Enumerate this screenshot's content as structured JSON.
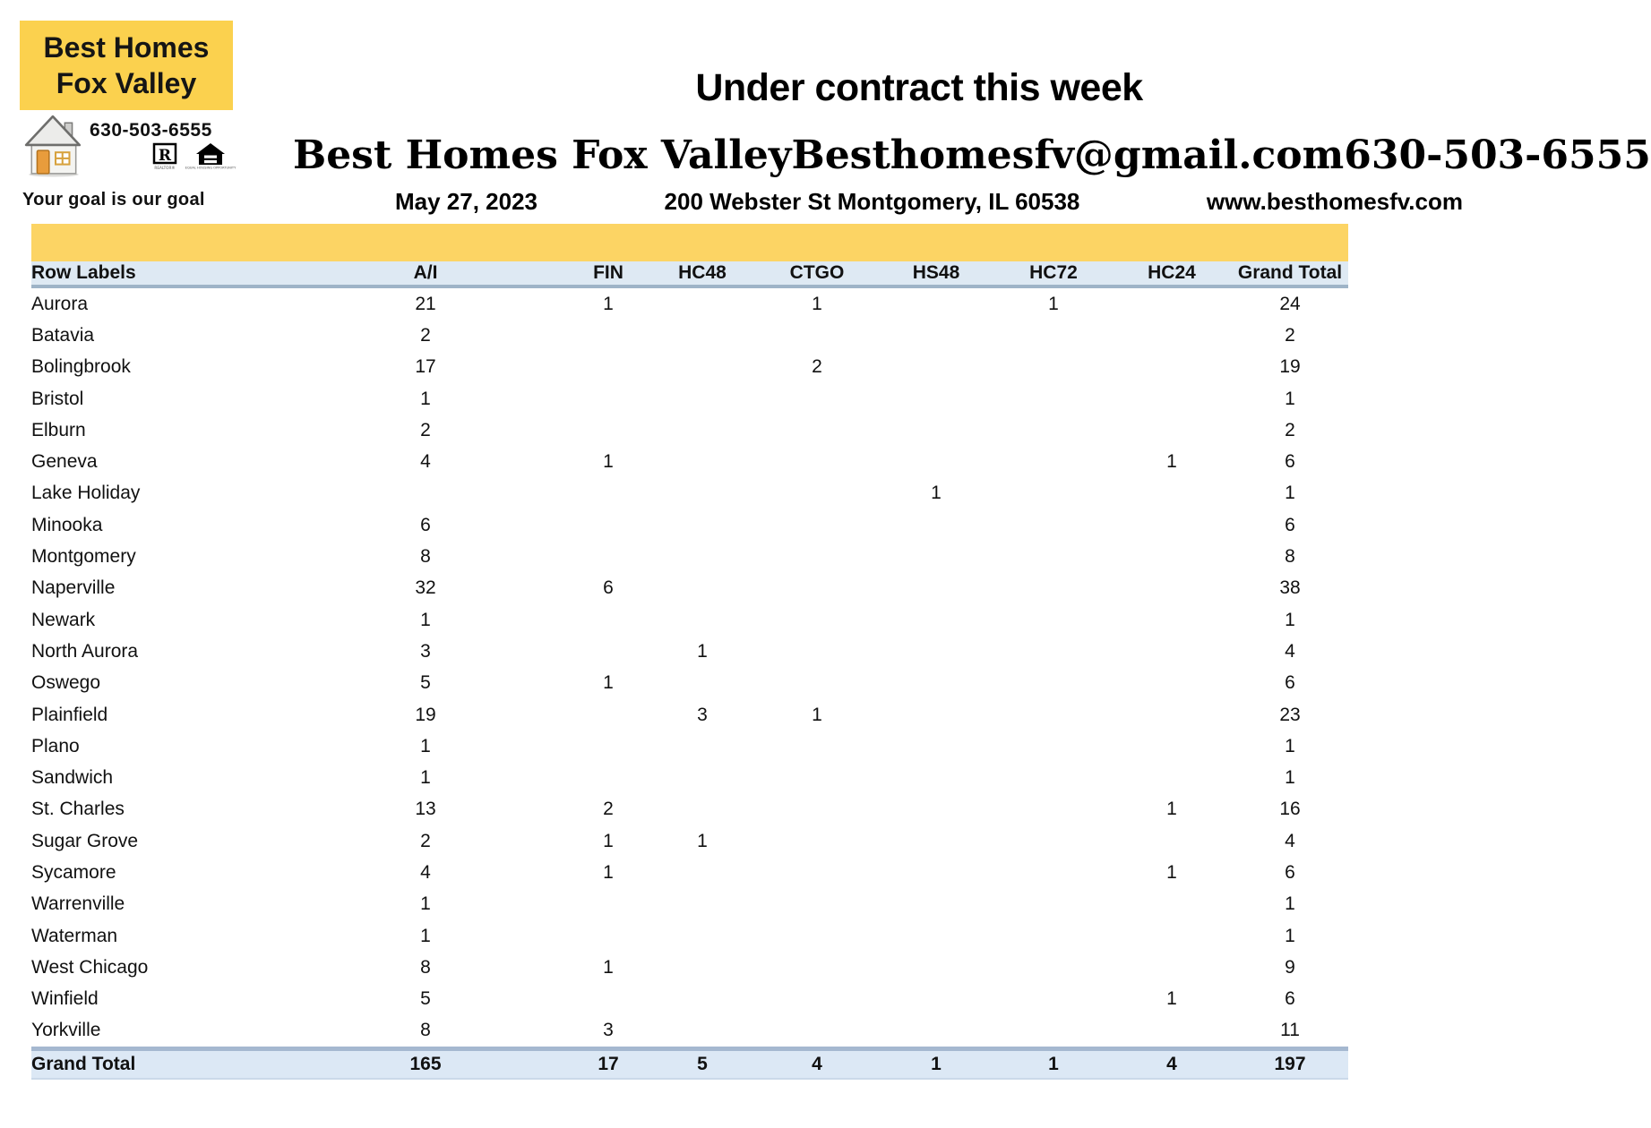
{
  "logo": {
    "name_line1": "Best Homes",
    "name_line2": "Fox Valley",
    "phone": "630-503-6555",
    "tagline": "Your goal is our goal",
    "realtor_text": "REALTOR®",
    "equal_housing_text_1": "EQUAL HOUSING",
    "equal_housing_text_2": "OPPORTUNITY"
  },
  "header": {
    "title": "Under contract this week",
    "company": "Best Homes Fox Valley",
    "email": "Besthomesfv@gmail.com",
    "phone": "630-503-6555",
    "date": "May 27, 2023",
    "address": "200 Webster St Montgomery, IL 60538",
    "website": "www.besthomesfv.com"
  },
  "table": {
    "columns": [
      "Row Labels",
      "A/I",
      "FIN",
      "HC48",
      "CTGO",
      "HS48",
      "HC72",
      "HC24",
      "Grand Total"
    ],
    "rows": [
      {
        "label": "Aurora",
        "values": [
          "21",
          "1",
          "",
          "1",
          "",
          "1",
          "",
          "24"
        ]
      },
      {
        "label": "Batavia",
        "values": [
          "2",
          "",
          "",
          "",
          "",
          "",
          "",
          "2"
        ]
      },
      {
        "label": "Bolingbrook",
        "values": [
          "17",
          "",
          "",
          "2",
          "",
          "",
          "",
          "19"
        ]
      },
      {
        "label": "Bristol",
        "values": [
          "1",
          "",
          "",
          "",
          "",
          "",
          "",
          "1"
        ]
      },
      {
        "label": "Elburn",
        "values": [
          "2",
          "",
          "",
          "",
          "",
          "",
          "",
          "2"
        ]
      },
      {
        "label": "Geneva",
        "values": [
          "4",
          "1",
          "",
          "",
          "",
          "",
          "1",
          "6"
        ]
      },
      {
        "label": "Lake Holiday",
        "values": [
          "",
          "",
          "",
          "",
          "1",
          "",
          "",
          "1"
        ]
      },
      {
        "label": "Minooka",
        "values": [
          "6",
          "",
          "",
          "",
          "",
          "",
          "",
          "6"
        ]
      },
      {
        "label": "Montgomery",
        "values": [
          "8",
          "",
          "",
          "",
          "",
          "",
          "",
          "8"
        ]
      },
      {
        "label": "Naperville",
        "values": [
          "32",
          "6",
          "",
          "",
          "",
          "",
          "",
          "38"
        ]
      },
      {
        "label": "Newark",
        "values": [
          "1",
          "",
          "",
          "",
          "",
          "",
          "",
          "1"
        ]
      },
      {
        "label": "North Aurora",
        "values": [
          "3",
          "",
          "1",
          "",
          "",
          "",
          "",
          "4"
        ]
      },
      {
        "label": "Oswego",
        "values": [
          "5",
          "1",
          "",
          "",
          "",
          "",
          "",
          "6"
        ]
      },
      {
        "label": "Plainfield",
        "values": [
          "19",
          "",
          "3",
          "1",
          "",
          "",
          "",
          "23"
        ]
      },
      {
        "label": "Plano",
        "values": [
          "1",
          "",
          "",
          "",
          "",
          "",
          "",
          "1"
        ]
      },
      {
        "label": "Sandwich",
        "values": [
          "1",
          "",
          "",
          "",
          "",
          "",
          "",
          "1"
        ]
      },
      {
        "label": "St. Charles",
        "values": [
          "13",
          "2",
          "",
          "",
          "",
          "",
          "1",
          "16"
        ]
      },
      {
        "label": "Sugar Grove",
        "values": [
          "2",
          "1",
          "1",
          "",
          "",
          "",
          "",
          "4"
        ]
      },
      {
        "label": "Sycamore",
        "values": [
          "4",
          "1",
          "",
          "",
          "",
          "",
          "1",
          "6"
        ]
      },
      {
        "label": "Warrenville",
        "values": [
          "1",
          "",
          "",
          "",
          "",
          "",
          "",
          "1"
        ]
      },
      {
        "label": "Waterman",
        "values": [
          "1",
          "",
          "",
          "",
          "",
          "",
          "",
          "1"
        ]
      },
      {
        "label": "West Chicago",
        "values": [
          "8",
          "1",
          "",
          "",
          "",
          "",
          "",
          "9"
        ]
      },
      {
        "label": "Winfield",
        "values": [
          "5",
          "",
          "",
          "",
          "",
          "",
          "1",
          "6"
        ]
      },
      {
        "label": "Yorkville",
        "values": [
          "8",
          "3",
          "",
          "",
          "",
          "",
          "",
          "11"
        ]
      }
    ],
    "grand_total": {
      "label": "Grand Total",
      "values": [
        "165",
        "17",
        "5",
        "4",
        "1",
        "1",
        "4",
        "197"
      ]
    }
  },
  "colors": {
    "logo_yellow": "#FBD14E",
    "band_yellow": "#FCD464",
    "header_row_blue": "#DEE9F3",
    "total_row_blue": "#DCE8F5",
    "header_border_blue": "#9EB3C7",
    "total_border_blue": "#A5B8D0",
    "door_orange": "#E89C3C"
  }
}
